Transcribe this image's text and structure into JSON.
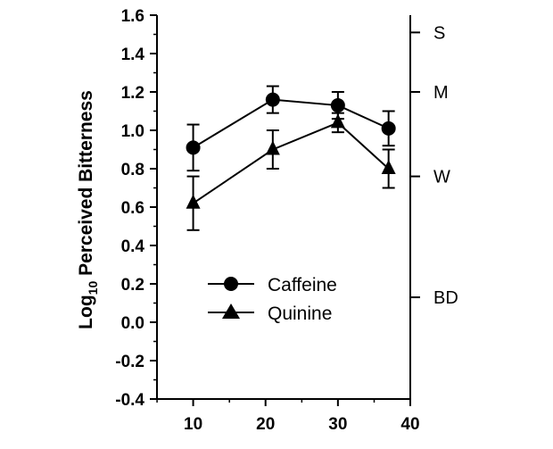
{
  "chart_data": {
    "type": "line",
    "ylabel": "Log10 Perceived Bitterness",
    "ylabel_main": "Log",
    "ylabel_sub": "10",
    "ylabel_rest": " Perceived Bitterness",
    "xlabel": "",
    "xlim": [
      5,
      40
    ],
    "ylim": [
      -0.4,
      1.6
    ],
    "xticks": [
      10,
      20,
      30,
      40
    ],
    "yticks": [
      "-0.4",
      "-0.2",
      "0.0",
      "0.2",
      "0.4",
      "0.6",
      "0.8",
      "1.0",
      "1.2",
      "1.4",
      "1.6"
    ],
    "right_axis_labels": [
      {
        "label": "S",
        "y": 1.51
      },
      {
        "label": "M",
        "y": 1.2
      },
      {
        "label": "W",
        "y": 0.76
      },
      {
        "label": "BD",
        "y": 0.13
      }
    ],
    "legend_position": "lower-center",
    "series": [
      {
        "name": "Caffeine",
        "marker": "circle",
        "x": [
          10,
          21,
          30,
          37
        ],
        "y": [
          0.91,
          1.16,
          1.13,
          1.01
        ],
        "err": [
          0.12,
          0.07,
          0.07,
          0.09
        ]
      },
      {
        "name": "Quinine",
        "marker": "triangle",
        "x": [
          10,
          21,
          30,
          37
        ],
        "y": [
          0.62,
          0.9,
          1.04,
          0.8
        ],
        "err": [
          0.14,
          0.1,
          0.05,
          0.1
        ]
      }
    ]
  }
}
